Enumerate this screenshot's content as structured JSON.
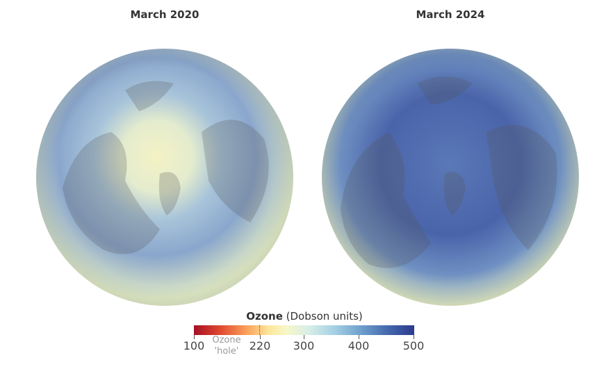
{
  "panels": [
    {
      "title": "March 2020"
    },
    {
      "title": "March 2024"
    }
  ],
  "legend": {
    "title_bold": "Ozone",
    "title_rest": "(Dobson units)",
    "ticks": [
      "100",
      "220",
      "300",
      "400",
      "500"
    ],
    "hole_label_line1": "Ozone",
    "hole_label_line2": "'hole'",
    "range": [
      100,
      500
    ],
    "hole_threshold": 220,
    "colors": [
      "#a50f26",
      "#fba25c",
      "#f7f7c8",
      "#a3d0e4",
      "#2c3a8c"
    ]
  }
}
